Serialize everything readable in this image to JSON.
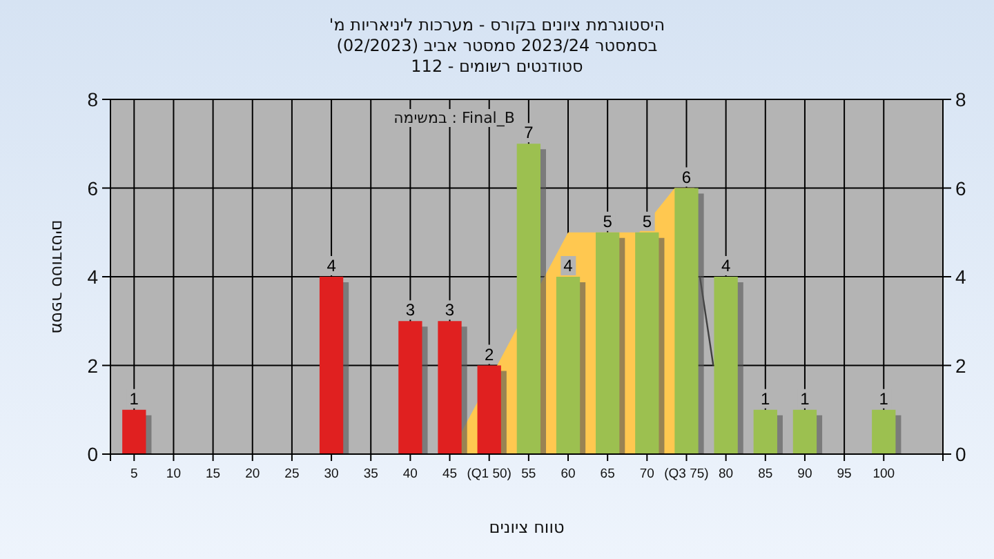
{
  "chart_data": {
    "type": "bar",
    "title": "היסטוגרמת ציונים בקורס - מערכות ליניאריות מ'",
    "subtitle": "בסמסטר 2023/24 סמסטר אביב (02/2023)",
    "annotations": [
      "סטודנטים רשומים - 112",
      "במשימה : Final_B"
    ],
    "xlabel": "טווח ציונים",
    "ylabel": "מספר סטודנטים",
    "x": [
      5,
      10,
      15,
      20,
      25,
      30,
      35,
      40,
      45,
      50,
      55,
      60,
      65,
      70,
      75,
      80,
      85,
      90,
      95,
      100
    ],
    "series": [
      {
        "type": "area",
        "color": "#ffc850",
        "x": [
          45,
          60,
          69,
          73.5,
          76
        ],
        "values": [
          0,
          5,
          5,
          6,
          6
        ]
      },
      {
        "type": "line",
        "color": "#404040",
        "x": [
          76.7,
          78.4
        ],
        "values": [
          4,
          2
        ]
      },
      {
        "type": "bar",
        "values": [
          1,
          0,
          0,
          0,
          0,
          4,
          0,
          3,
          3,
          2,
          7,
          4,
          5,
          5,
          6,
          4,
          1,
          1,
          0,
          1
        ],
        "colors": [
          "#e02020",
          "#e02020",
          "#e02020",
          "#e02020",
          "#e02020",
          "#e02020",
          "#e02020",
          "#e02020",
          "#e02020",
          "#e02020",
          "#9cc050",
          "#9cc050",
          "#9cc050",
          "#9cc050",
          "#9cc050",
          "#9cc050",
          "#9cc050",
          "#9cc050",
          "#9cc050",
          "#9cc050"
        ],
        "value_labels": [
          "1",
          null,
          null,
          null,
          null,
          "4",
          null,
          "3",
          "3",
          "2",
          "7",
          "4",
          "5",
          "5",
          "6",
          "4",
          "1",
          "1",
          null,
          "1"
        ]
      }
    ],
    "xlim": [
      2,
      107.5
    ],
    "ylim": [
      0,
      8
    ],
    "y2lim": [
      0,
      8
    ],
    "xticks": [
      5,
      10,
      15,
      20,
      25,
      30,
      35,
      40,
      45,
      {
        "value": 50,
        "label": "(Q1 50)"
      },
      55,
      60,
      65,
      70,
      {
        "value": 75,
        "label": "(Q3 75)"
      },
      80,
      85,
      90,
      95,
      100
    ],
    "yticks": [
      0,
      2,
      4,
      6,
      8
    ],
    "y2ticks": [
      0,
      2,
      4,
      6,
      8
    ],
    "grid": true
  }
}
